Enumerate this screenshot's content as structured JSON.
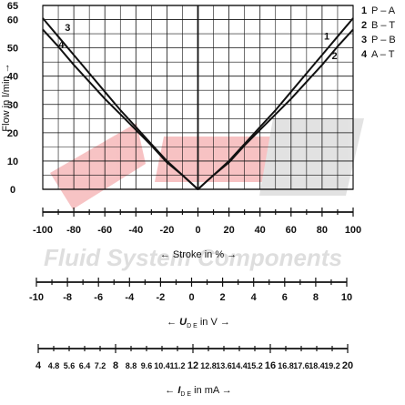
{
  "chart_data": {
    "type": "line",
    "ylabel": "Flow in l/min →",
    "xlabel": "← Stroke in % →",
    "xlim": [
      -100,
      100
    ],
    "ylim": [
      0,
      65
    ],
    "xticks": [
      -100,
      -80,
      -60,
      -40,
      -20,
      0,
      20,
      40,
      60,
      80,
      100
    ],
    "yticks": [
      0,
      10,
      20,
      30,
      40,
      50,
      60,
      65
    ],
    "grid": true,
    "series": [
      {
        "name": "1",
        "x": [
          -100,
          -90,
          -80,
          -70,
          -60,
          -50,
          -40,
          -30,
          -20,
          -10,
          -5,
          0,
          5,
          10,
          20,
          30,
          40,
          50,
          60,
          70,
          80,
          90,
          100
        ],
        "y": [
          60.5,
          54,
          47.5,
          41,
          34.5,
          28,
          22,
          16,
          10,
          5,
          2.5,
          0,
          2.5,
          5,
          10,
          16,
          22,
          28,
          34.5,
          41,
          47.5,
          54,
          60.5
        ]
      },
      {
        "name": "2",
        "x": [
          -100,
          -90,
          -80,
          -70,
          -60,
          -50,
          -40,
          -30,
          -20,
          -10,
          -5,
          0,
          5,
          10,
          20,
          30,
          40,
          50,
          60,
          70,
          80,
          90,
          100
        ],
        "y": [
          56.5,
          50.5,
          44,
          38,
          32,
          26.5,
          21,
          15.5,
          9.5,
          5,
          2.5,
          0,
          2.5,
          5,
          9.5,
          15.5,
          21,
          26.5,
          32,
          38,
          44,
          50.5,
          56.5
        ]
      },
      {
        "name": "3",
        "x": [
          -100,
          -80,
          -60,
          -40,
          -20,
          0,
          20,
          40,
          60,
          80,
          100
        ],
        "y": [
          60.5,
          47.5,
          34.5,
          22,
          10,
          0,
          10,
          22,
          34.5,
          47.5,
          60.5
        ]
      },
      {
        "name": "4",
        "x": [
          -100,
          -80,
          -60,
          -40,
          -20,
          0,
          20,
          40,
          60,
          80,
          100
        ],
        "y": [
          56.5,
          44,
          32,
          21,
          9.5,
          0,
          9.5,
          21,
          32,
          44,
          56.5
        ]
      }
    ],
    "curve_labels": [
      {
        "text": "1",
        "x": 83,
        "y": 53
      },
      {
        "text": "2",
        "x": 88,
        "y": 46
      },
      {
        "text": "3",
        "x": -84,
        "y": 56
      },
      {
        "text": "4",
        "x": -88,
        "y": 50
      }
    ],
    "legend": {
      "position": "top-right",
      "items": [
        {
          "num": "1",
          "label": "P – A"
        },
        {
          "num": "2",
          "label": "B – T"
        },
        {
          "num": "3",
          "label": "P – B"
        },
        {
          "num": "4",
          "label": "A – T"
        }
      ]
    },
    "scales": [
      {
        "id": "stroke",
        "title": "← Stroke in % →",
        "labels": [
          "-100",
          "-80",
          "-60",
          "-40",
          "-20",
          "0",
          "20",
          "40",
          "60",
          "80",
          "100"
        ]
      },
      {
        "id": "voltage",
        "title": "← U D E in V →",
        "title_main": "U",
        "title_sub": "D E",
        "title_rest": " in V →",
        "title_pre": "← ",
        "labels": [
          "-10",
          "-8",
          "-6",
          "-4",
          "-2",
          "0",
          "2",
          "4",
          "6",
          "8",
          "10"
        ]
      },
      {
        "id": "current",
        "title": "← I D E in mA →",
        "title_main": "I",
        "title_sub": "D E",
        "title_rest": " in mA →",
        "title_pre": "← ",
        "labels_major": [
          "4",
          "8",
          "12",
          "16",
          "20"
        ],
        "labels_minor": [
          "4.8",
          "5.6",
          "6.4",
          "7.2",
          "8.8",
          "9.6",
          "10.4",
          "11.2",
          "12.8",
          "13.6",
          "14.4",
          "15.2",
          "16.8",
          "17.6",
          "18.4",
          "19.2"
        ]
      }
    ],
    "watermark": "Fluid System Components"
  },
  "colors": {
    "line": "#111111",
    "grid": "#111111",
    "watermark_red": "#e3282c",
    "watermark_grey": "#c9c9c9"
  }
}
